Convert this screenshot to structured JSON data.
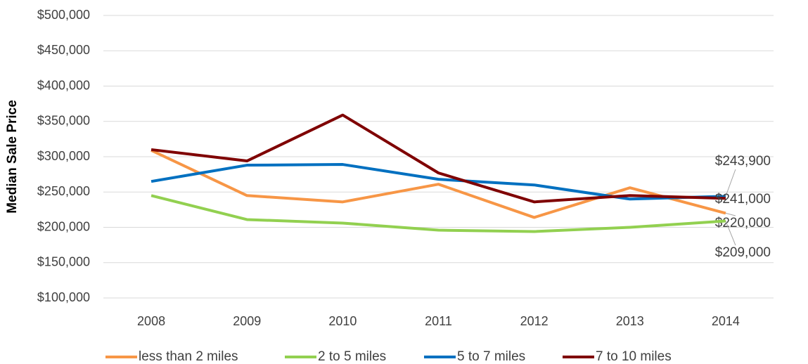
{
  "chart_data": {
    "type": "line",
    "y_label": "Median Sale Price",
    "categories": [
      "2008",
      "2009",
      "2010",
      "2011",
      "2012",
      "2013",
      "2014"
    ],
    "series": [
      {
        "name": "less than 2 miles",
        "color": "#f79646",
        "values": [
          309000,
          245000,
          236000,
          261000,
          214000,
          256000,
          220000
        ],
        "value_labels": [
          null,
          null,
          null,
          null,
          null,
          null,
          "$220,000"
        ]
      },
      {
        "name": "2 to 5 miles",
        "color": "#92d050",
        "values": [
          245000,
          211000,
          206000,
          196000,
          194000,
          200000,
          209000
        ],
        "value_labels": [
          null,
          null,
          null,
          null,
          null,
          null,
          "$209,000"
        ]
      },
      {
        "name": "5 to 7 miles",
        "color": "#0070c0",
        "values": [
          265000,
          288000,
          289000,
          268000,
          260000,
          240000,
          243900
        ],
        "value_labels": [
          null,
          null,
          null,
          null,
          null,
          null,
          "$243,900"
        ]
      },
      {
        "name": "7 to 10 miles",
        "color": "#7f0000",
        "values": [
          310000,
          294000,
          359000,
          277000,
          236000,
          245000,
          241000
        ],
        "value_labels": [
          null,
          null,
          null,
          null,
          null,
          null,
          "$241,000"
        ]
      }
    ],
    "ylim": [
      100000,
      500000
    ],
    "yticks": [
      {
        "value": 100000,
        "label": "$100,000"
      },
      {
        "value": 150000,
        "label": "$150,000"
      },
      {
        "value": 200000,
        "label": "$200,000"
      },
      {
        "value": 250000,
        "label": "$250,000"
      },
      {
        "value": 300000,
        "label": "$300,000"
      },
      {
        "value": 350000,
        "label": "$350,000"
      },
      {
        "value": 400000,
        "label": "$400,000"
      },
      {
        "value": 450000,
        "label": "$450,000"
      },
      {
        "value": 500000,
        "label": "$500,000"
      }
    ],
    "grid": true,
    "legend": "bottom"
  }
}
